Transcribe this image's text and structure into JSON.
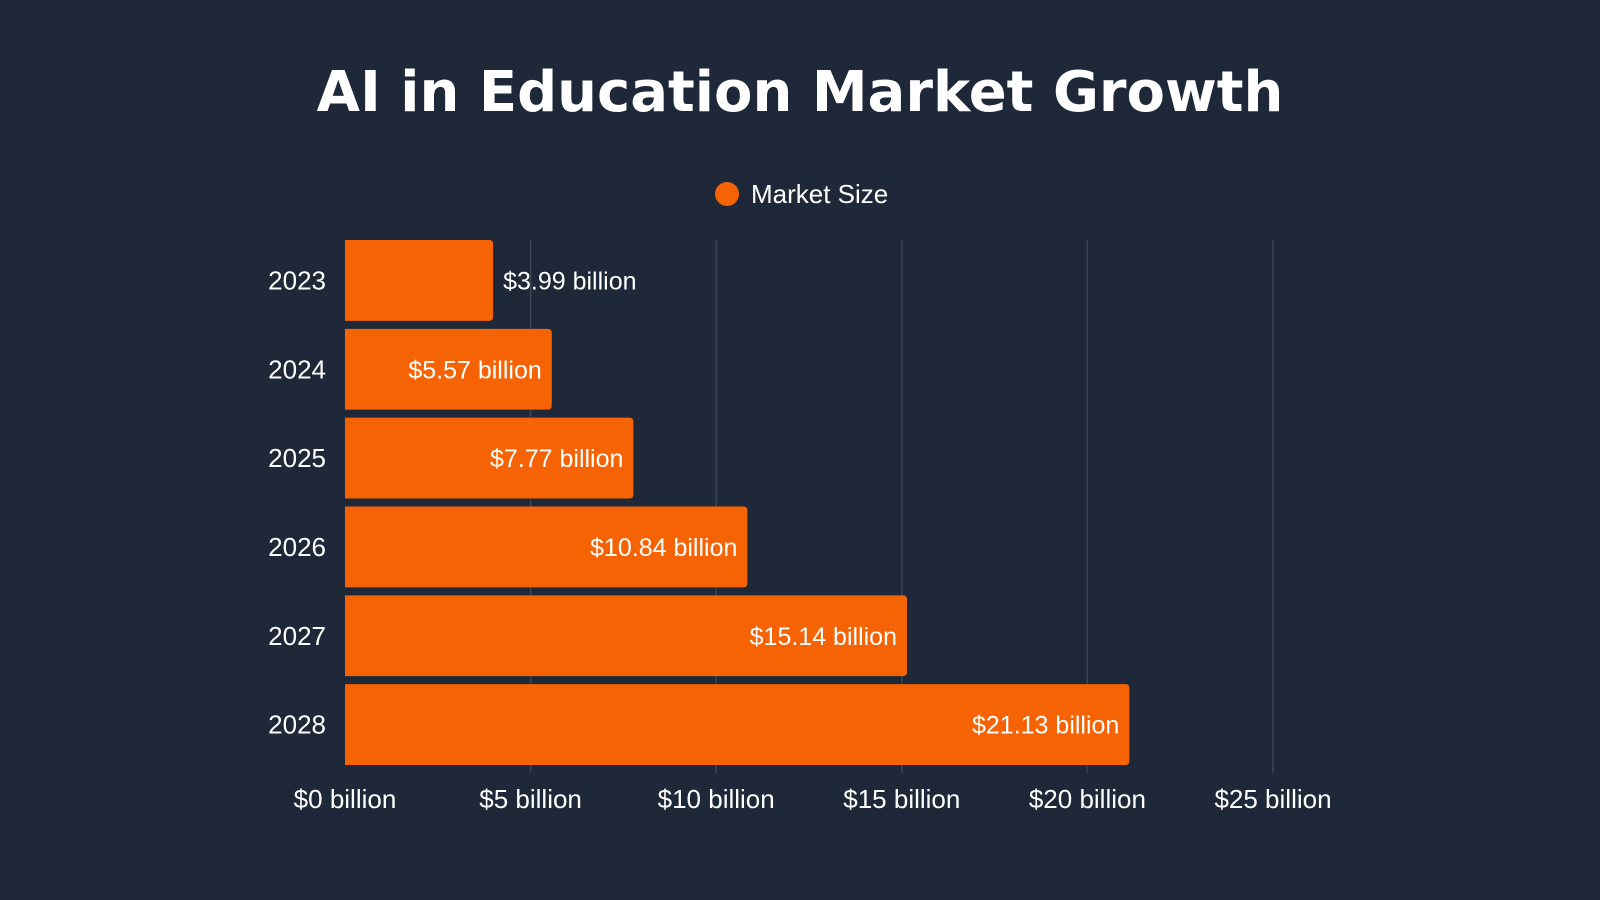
{
  "chart_data": {
    "type": "bar",
    "orientation": "horizontal",
    "title": "AI in Education Market Growth",
    "categories": [
      "2023",
      "2024",
      "2025",
      "2026",
      "2027",
      "2028"
    ],
    "series": [
      {
        "name": "Market Size",
        "values": [
          3.99,
          5.57,
          7.77,
          10.84,
          15.14,
          21.13
        ],
        "labels": [
          "$3.99 billion",
          "$5.57 billion",
          "$7.77 billion",
          "$10.84 billion",
          "$15.14 billion",
          "$21.13 billion"
        ]
      }
    ],
    "xlim": [
      0,
      25
    ],
    "x_ticks": [
      0,
      5,
      10,
      15,
      20,
      25
    ],
    "x_tick_labels": [
      "$0 billion",
      "$5 billion",
      "$10 billion",
      "$15 billion",
      "$20 billion",
      "$25 billion"
    ],
    "grid": true,
    "legend_position": "top-center"
  },
  "colors": {
    "background": "#1e2838",
    "bar": "#f56304",
    "grid": "#3a4556",
    "text": "#ffffff"
  }
}
